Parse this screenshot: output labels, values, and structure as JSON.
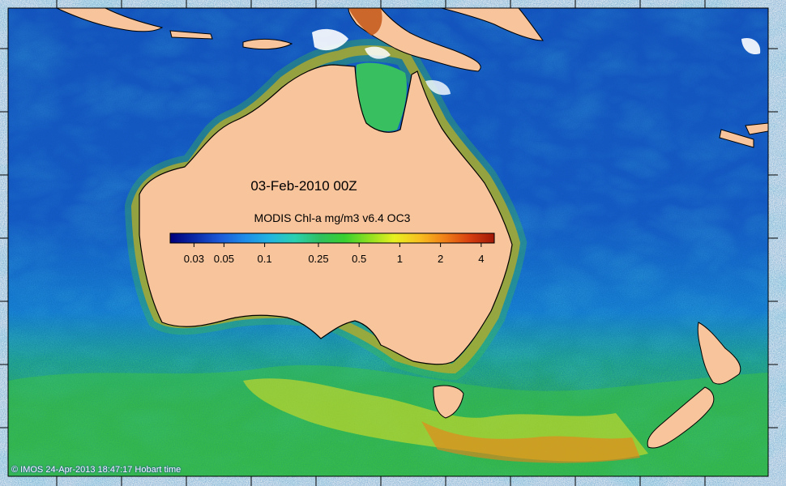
{
  "map": {
    "date_label": "03-Feb-2010 00Z",
    "credit": "© IMOS 24-Apr-2013 18:47:17 Hobart time",
    "colors": {
      "land": "#f8c49c",
      "coast": "#000000",
      "cloud": "#ffffff",
      "ramp": [
        "#00007a",
        "#0a2aa8",
        "#1c5ad8",
        "#1e8ce8",
        "#22b4e0",
        "#2ad0b0",
        "#30c060",
        "#38d030",
        "#90e020",
        "#e8f020",
        "#f8c020",
        "#f08018",
        "#d84010",
        "#a01808"
      ]
    }
  },
  "colorbar": {
    "title": "MODIS Chl-a mg/m3 v6.4 OC3",
    "min": 0.02,
    "max": 5,
    "scale": "log",
    "ticks": [
      {
        "label": "0.03",
        "value": 0.03
      },
      {
        "label": "0.05",
        "value": 0.05
      },
      {
        "label": "0.1",
        "value": 0.1
      },
      {
        "label": "0.25",
        "value": 0.25
      },
      {
        "label": "0.5",
        "value": 0.5
      },
      {
        "label": "1",
        "value": 1
      },
      {
        "label": "2",
        "value": 2
      },
      {
        "label": "4",
        "value": 4
      }
    ]
  }
}
